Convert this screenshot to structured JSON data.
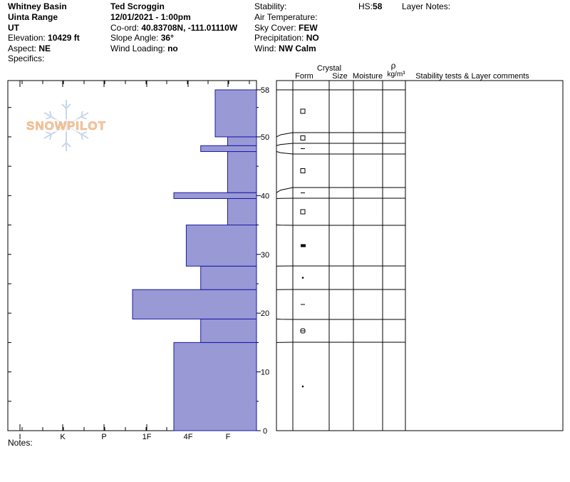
{
  "header": {
    "location": "Whitney Basin",
    "range": "Uinta Range",
    "state": "UT",
    "elevation_label": "Elevation:",
    "elevation": "10429 ft",
    "aspect_label": "Aspect:",
    "aspect": "NE",
    "specifics_label": "Specifics:",
    "observer": "Ted Scroggin",
    "datetime": "12/01/2021 - 1:00pm",
    "coord_label": "Co-ord:",
    "coord": "40.83708N, -111.01110W",
    "slope_label": "Slope Angle:",
    "slope": "36°",
    "wind_loading_label": "Wind Loading:",
    "wind_loading": "no",
    "stability_label": "Stability:",
    "air_temp_label": "Air Temperature:",
    "sky_label": "Sky Cover:",
    "sky": "FEW",
    "precip_label": "Precipitation:",
    "precip": "NO",
    "wind_label": "Wind:",
    "wind": "NW Calm",
    "hs_label": "HS:",
    "hs": "58",
    "layer_notes_label": "Layer Notes:"
  },
  "notes_label": "Notes:",
  "logo_text": "SNOWPILOT",
  "columns": {
    "crystal": "Crystal",
    "form": "Form",
    "size": "Size",
    "moisture": "Moisture",
    "rho": "ρ",
    "rho_unit": "kg/m³",
    "comments": "Stability tests & Layer comments"
  },
  "colors": {
    "layer_fill": "#9999d6",
    "layer_stroke": "#1a1aa6",
    "logo": "#c8d8ea",
    "logo_text": "#f3c9a3"
  },
  "chart_data": {
    "type": "bar",
    "orientation": "horizontal-step",
    "xlabel": "",
    "ylabel": "",
    "x_ticks": [
      "I",
      "K",
      "P",
      "1F",
      "4F",
      "F"
    ],
    "hardness_scale": "F=1, 4F=2, 1F=3, P=4, K=5, I=6",
    "y_ticks": [
      0,
      10,
      20,
      30,
      40,
      50,
      58
    ],
    "ylim": [
      0,
      58
    ],
    "layers": [
      {
        "bottom": 0,
        "top": 15,
        "hardness": 2.0,
        "form": "dot"
      },
      {
        "bottom": 15,
        "top": 19,
        "hardness": 1.35,
        "form": "grain"
      },
      {
        "bottom": 19,
        "top": 24,
        "hardness": 3.0,
        "form": "dash"
      },
      {
        "bottom": 24,
        "top": 28,
        "hardness": 1.35,
        "form": "dot"
      },
      {
        "bottom": 28,
        "top": 35,
        "hardness": 1.7,
        "form": "solid"
      },
      {
        "bottom": 35,
        "top": 39.5,
        "hardness": 0.7,
        "form": "square"
      },
      {
        "bottom": 39.5,
        "top": 40.5,
        "hardness": 2.0,
        "form": "dash"
      },
      {
        "bottom": 40.5,
        "top": 47.5,
        "hardness": 0.7,
        "form": "square"
      },
      {
        "bottom": 47.5,
        "top": 48.5,
        "hardness": 1.35,
        "form": "dash"
      },
      {
        "bottom": 48.5,
        "top": 50,
        "hardness": 0.7,
        "form": "square"
      },
      {
        "bottom": 50,
        "top": 58,
        "hardness": 1.0,
        "form": "square"
      }
    ]
  }
}
